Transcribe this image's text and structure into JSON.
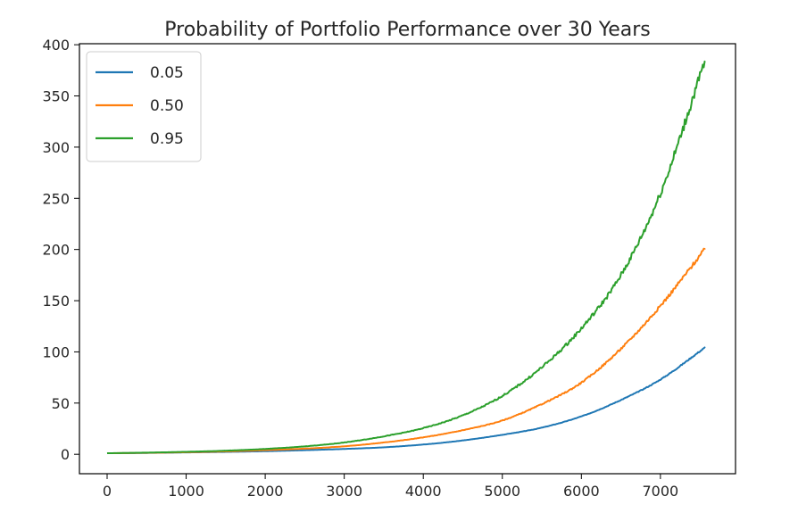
{
  "chart_data": {
    "type": "line",
    "title": "Probability of Portfolio Performance over 30 Years",
    "xlabel": "",
    "ylabel": "",
    "xlim": [
      -350,
      7950
    ],
    "ylim": [
      -19,
      401
    ],
    "xticks": [
      0,
      1000,
      2000,
      3000,
      4000,
      5000,
      6000,
      7000
    ],
    "yticks": [
      0,
      50,
      100,
      150,
      200,
      250,
      300,
      350,
      400
    ],
    "grid": false,
    "legend": "top-left",
    "x": [
      0,
      500,
      1000,
      1500,
      2000,
      2500,
      3000,
      3500,
      4000,
      4500,
      5000,
      5500,
      6000,
      6500,
      7000,
      7560
    ],
    "series": [
      {
        "name": "0.05",
        "color": "#1f77b4",
        "values": [
          1,
          1.3,
          1.8,
          2.3,
          3,
          4,
          5.2,
          6.8,
          9.5,
          13.5,
          19,
          26,
          37,
          53,
          73,
          104
        ]
      },
      {
        "name": "0.50",
        "color": "#ff7f0e",
        "values": [
          1,
          1.4,
          2,
          2.8,
          4,
          5.5,
          7.8,
          11.5,
          16.5,
          23.5,
          33,
          49,
          70,
          103,
          145,
          200
        ]
      },
      {
        "name": "0.95",
        "color": "#2ca02c",
        "values": [
          1,
          1.6,
          2.4,
          3.5,
          5.2,
          7.7,
          11.5,
          17.5,
          25.5,
          38,
          57,
          85,
          123,
          175,
          255,
          383
        ]
      }
    ]
  }
}
